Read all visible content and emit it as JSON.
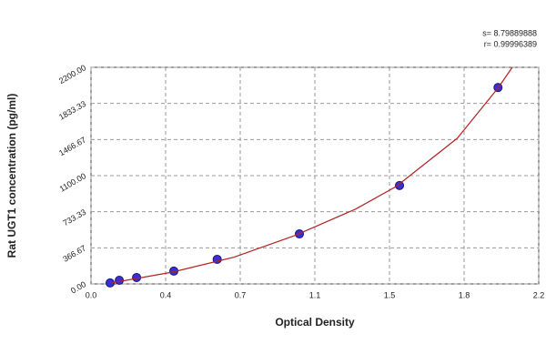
{
  "chart_data": {
    "type": "scatter",
    "x_label": "Optical Density",
    "y_label": "Rat UGT1 concentration (pg/ml)",
    "annotations": [
      "s= 8.79889888",
      "r= 0.99996389"
    ],
    "xlim": [
      0,
      2.2
    ],
    "xticks": [
      {
        "value": 0,
        "label": "0.0"
      },
      {
        "value": 0.3667,
        "label": "0.4"
      },
      {
        "value": 0.7333,
        "label": "0.7"
      },
      1.1,
      {
        "value": 1.4667,
        "label": "1.5"
      },
      {
        "value": 1.8333,
        "label": "1.8"
      },
      2.2
    ],
    "ylim": [
      0,
      2200
    ],
    "yticks": [
      {
        "value": 0,
        "label": "0.00"
      },
      366.67,
      733.33,
      {
        "value": 1100,
        "label": "1100.00"
      },
      1466.67,
      1833.33,
      {
        "value": 2200,
        "label": "2200.00"
      }
    ],
    "grid": true,
    "series": [
      {
        "style": "markers",
        "color": "#3a2fd0",
        "x": [
          0.094,
          0.139,
          0.224,
          0.407,
          0.62,
          1.024,
          1.516,
          2.0
        ],
        "values": [
          10,
          37,
          65,
          130,
          250,
          508,
          1000,
          1995
        ]
      },
      {
        "style": "line",
        "color": "#b22222",
        "x": [
          0.1,
          0.4,
          0.7,
          1.0,
          1.3,
          1.5,
          1.8,
          2.0,
          2.07
        ],
        "values": [
          10,
          120,
          270,
          490,
          760,
          990,
          1480,
          1990,
          2200
        ]
      }
    ]
  }
}
